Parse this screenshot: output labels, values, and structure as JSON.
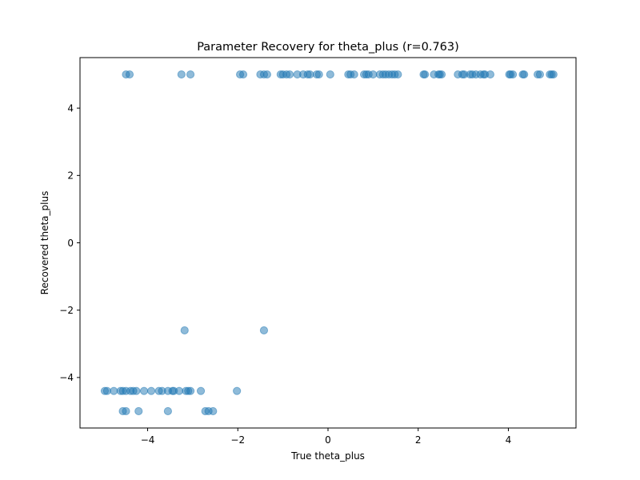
{
  "chart_data": {
    "type": "scatter",
    "title": "Parameter Recovery for theta_plus (r=0.763)",
    "xlabel": "True theta_plus",
    "ylabel": "Recovered theta_plus",
    "xlim": [
      -5.5,
      5.5
    ],
    "ylim": [
      -5.5,
      5.5
    ],
    "xticks": [
      -4,
      -2,
      0,
      2,
      4
    ],
    "yticks": [
      -4,
      -2,
      0,
      2,
      4
    ],
    "tick_labels_x": [
      "−4",
      "−2",
      "0",
      "2",
      "4"
    ],
    "tick_labels_y": [
      "−4",
      "−2",
      "0",
      "2",
      "4"
    ],
    "grid": false,
    "legend": "none",
    "color": "#1f77b4",
    "alpha": 0.5,
    "points": [
      [
        -4.48,
        5.0
      ],
      [
        -4.4,
        5.0
      ],
      [
        -3.25,
        5.0
      ],
      [
        -3.05,
        5.0
      ],
      [
        -1.95,
        5.0
      ],
      [
        -1.88,
        5.0
      ],
      [
        -1.5,
        5.0
      ],
      [
        -1.42,
        5.0
      ],
      [
        -1.35,
        5.0
      ],
      [
        -1.05,
        5.0
      ],
      [
        -1.0,
        5.0
      ],
      [
        -0.92,
        5.0
      ],
      [
        -0.85,
        5.0
      ],
      [
        -0.68,
        5.0
      ],
      [
        -0.55,
        5.0
      ],
      [
        -0.45,
        5.0
      ],
      [
        -0.4,
        5.0
      ],
      [
        -0.25,
        5.0
      ],
      [
        -0.2,
        5.0
      ],
      [
        0.05,
        5.0
      ],
      [
        0.45,
        5.0
      ],
      [
        0.5,
        5.0
      ],
      [
        0.58,
        5.0
      ],
      [
        0.8,
        5.0
      ],
      [
        0.85,
        5.0
      ],
      [
        0.9,
        5.0
      ],
      [
        1.0,
        5.0
      ],
      [
        1.15,
        5.0
      ],
      [
        1.22,
        5.0
      ],
      [
        1.28,
        5.0
      ],
      [
        1.35,
        5.0
      ],
      [
        1.42,
        5.0
      ],
      [
        1.48,
        5.0
      ],
      [
        1.55,
        5.0
      ],
      [
        2.12,
        5.0
      ],
      [
        2.15,
        5.0
      ],
      [
        2.35,
        5.0
      ],
      [
        2.45,
        5.0
      ],
      [
        2.48,
        5.0
      ],
      [
        2.52,
        5.0
      ],
      [
        2.88,
        5.0
      ],
      [
        2.98,
        5.0
      ],
      [
        3.02,
        5.0
      ],
      [
        3.15,
        5.0
      ],
      [
        3.2,
        5.0
      ],
      [
        3.28,
        5.0
      ],
      [
        3.38,
        5.0
      ],
      [
        3.45,
        5.0
      ],
      [
        3.48,
        5.0
      ],
      [
        3.6,
        5.0
      ],
      [
        4.02,
        5.0
      ],
      [
        4.05,
        5.0
      ],
      [
        4.1,
        5.0
      ],
      [
        4.32,
        5.0
      ],
      [
        4.35,
        5.0
      ],
      [
        4.65,
        5.0
      ],
      [
        4.7,
        5.0
      ],
      [
        4.92,
        5.0
      ],
      [
        4.96,
        5.0
      ],
      [
        5.0,
        5.0
      ],
      [
        -3.18,
        -2.6
      ],
      [
        -1.42,
        -2.6
      ],
      [
        -4.95,
        -4.4
      ],
      [
        -4.9,
        -4.4
      ],
      [
        -4.75,
        -4.4
      ],
      [
        -4.6,
        -4.4
      ],
      [
        -4.55,
        -4.4
      ],
      [
        -4.48,
        -4.4
      ],
      [
        -4.38,
        -4.4
      ],
      [
        -4.32,
        -4.4
      ],
      [
        -4.25,
        -4.4
      ],
      [
        -4.08,
        -4.4
      ],
      [
        -3.92,
        -4.4
      ],
      [
        -3.75,
        -4.4
      ],
      [
        -3.68,
        -4.4
      ],
      [
        -3.55,
        -4.4
      ],
      [
        -3.45,
        -4.4
      ],
      [
        -3.42,
        -4.4
      ],
      [
        -3.3,
        -4.4
      ],
      [
        -3.15,
        -4.4
      ],
      [
        -3.1,
        -4.4
      ],
      [
        -3.05,
        -4.4
      ],
      [
        -2.82,
        -4.4
      ],
      [
        -2.02,
        -4.4
      ],
      [
        -4.55,
        -5.0
      ],
      [
        -4.48,
        -5.0
      ],
      [
        -4.2,
        -5.0
      ],
      [
        -3.55,
        -5.0
      ],
      [
        -2.72,
        -5.0
      ],
      [
        -2.65,
        -5.0
      ],
      [
        -2.55,
        -5.0
      ]
    ]
  }
}
